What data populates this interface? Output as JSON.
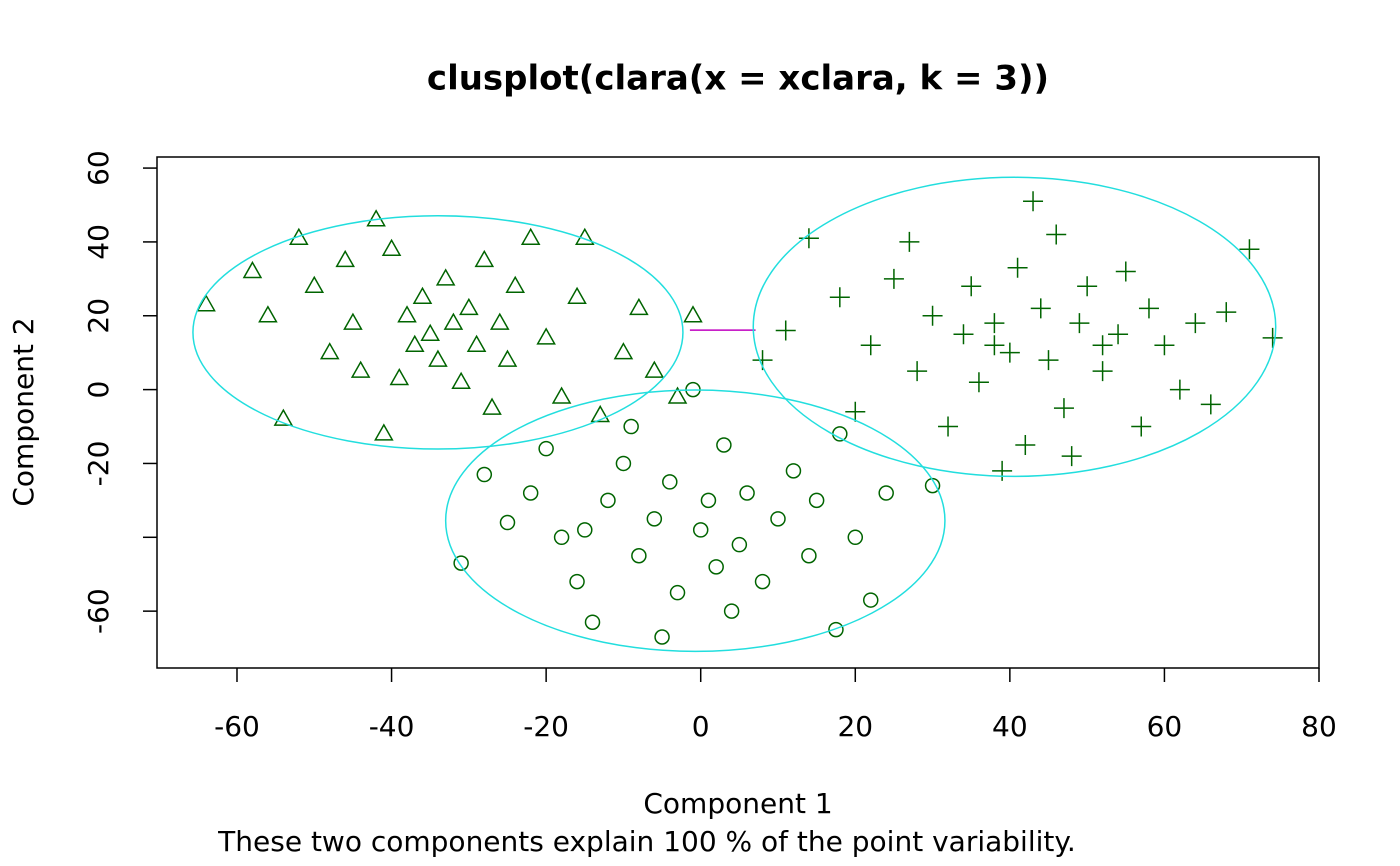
{
  "chart_data": {
    "type": "scatter",
    "title": "clusplot(clara(x = xclara, k = 3))",
    "xlabel": "Component 1",
    "ylabel": "Component 2",
    "subtitle": "These two components explain 100 % of the point variability.",
    "xlim": [
      -70.35,
      80
    ],
    "ylim": [
      -75.4,
      63
    ],
    "xticks": [
      -60,
      -40,
      -20,
      0,
      20,
      40,
      60,
      80
    ],
    "yticks": [
      -60,
      {
        "value": -40,
        "label": null
      },
      -20,
      0,
      20,
      40,
      60
    ],
    "series": [
      {
        "marker": "triangle",
        "color": "#006400",
        "x": [
          -64,
          -58,
          -56,
          -54,
          -52,
          -50,
          -48,
          -46,
          -44,
          -42,
          -41,
          -40,
          -38,
          -37,
          -36,
          -35,
          -34,
          -33,
          -32,
          -31,
          -30,
          -29,
          -28,
          -27,
          -26,
          -25,
          -24,
          -22,
          -20,
          -18,
          -16,
          -15,
          -13,
          -10,
          -8,
          -6,
          -3,
          -1,
          -45,
          -39
        ],
        "values": [
          23,
          32,
          20,
          -8,
          41,
          28,
          10,
          35,
          5,
          46,
          -12,
          38,
          20,
          12,
          25,
          15,
          8,
          30,
          18,
          2,
          22,
          12,
          35,
          -5,
          18,
          8,
          28,
          41,
          14,
          -2,
          25,
          41,
          -7,
          10,
          22,
          5,
          -2,
          20,
          18,
          3
        ],
        "ellipse": {
          "center": [
            -34,
            15.5
          ],
          "radii": [
            31.7,
            31.6
          ],
          "color": "#22dede"
        }
      },
      {
        "marker": "circle",
        "color": "#006400",
        "x": [
          -31,
          -28,
          -25,
          -22,
          -20,
          -18,
          -16,
          -14,
          -12,
          -10,
          -8,
          -6,
          -5,
          -4,
          -3,
          -1,
          0,
          1,
          2,
          3,
          5,
          6,
          8,
          10,
          12,
          14,
          15,
          17.5,
          18,
          20,
          22,
          24,
          30,
          -9,
          4,
          -15
        ],
        "values": [
          -47,
          -23,
          -36,
          -28,
          -16,
          -40,
          -52,
          -63,
          -30,
          -20,
          -45,
          -35,
          -67,
          -25,
          -55,
          0,
          -38,
          -30,
          -48,
          -15,
          -42,
          -28,
          -52,
          -35,
          -22,
          -45,
          -30,
          -65,
          -12,
          -40,
          -57,
          -28,
          -26,
          -10,
          -60,
          -38
        ],
        "ellipse": {
          "center": [
            -0.7,
            -35.5
          ],
          "radii": [
            32.3,
            35.4
          ],
          "color": "#22dede"
        }
      },
      {
        "marker": "plus",
        "color": "#006400",
        "x": [
          8,
          11,
          14,
          18,
          20,
          22,
          25,
          27,
          28,
          30,
          32,
          34,
          35,
          36,
          38,
          39,
          40,
          41,
          42,
          43,
          44,
          45,
          46,
          47,
          48,
          49,
          50,
          52,
          54,
          55,
          57,
          58,
          60,
          62,
          64,
          66,
          68,
          71,
          74,
          52,
          38
        ],
        "values": [
          8,
          16,
          41,
          25,
          -6,
          12,
          30,
          40,
          5,
          20,
          -10,
          15,
          28,
          2,
          18,
          -22,
          10,
          33,
          -15,
          51,
          22,
          8,
          42,
          -5,
          -18,
          18,
          28,
          5,
          15,
          32,
          -10,
          22,
          12,
          0,
          18,
          -4,
          21,
          38,
          14,
          12,
          12
        ],
        "ellipse": {
          "center": [
            40.6,
            17
          ],
          "radii": [
            33.8,
            40.5
          ],
          "color": "#22dede"
        }
      }
    ],
    "segments": [
      {
        "x": [
          -1.4,
          7.1
        ],
        "y": [
          16.1,
          16.1
        ],
        "color": "#c000c0"
      }
    ]
  }
}
